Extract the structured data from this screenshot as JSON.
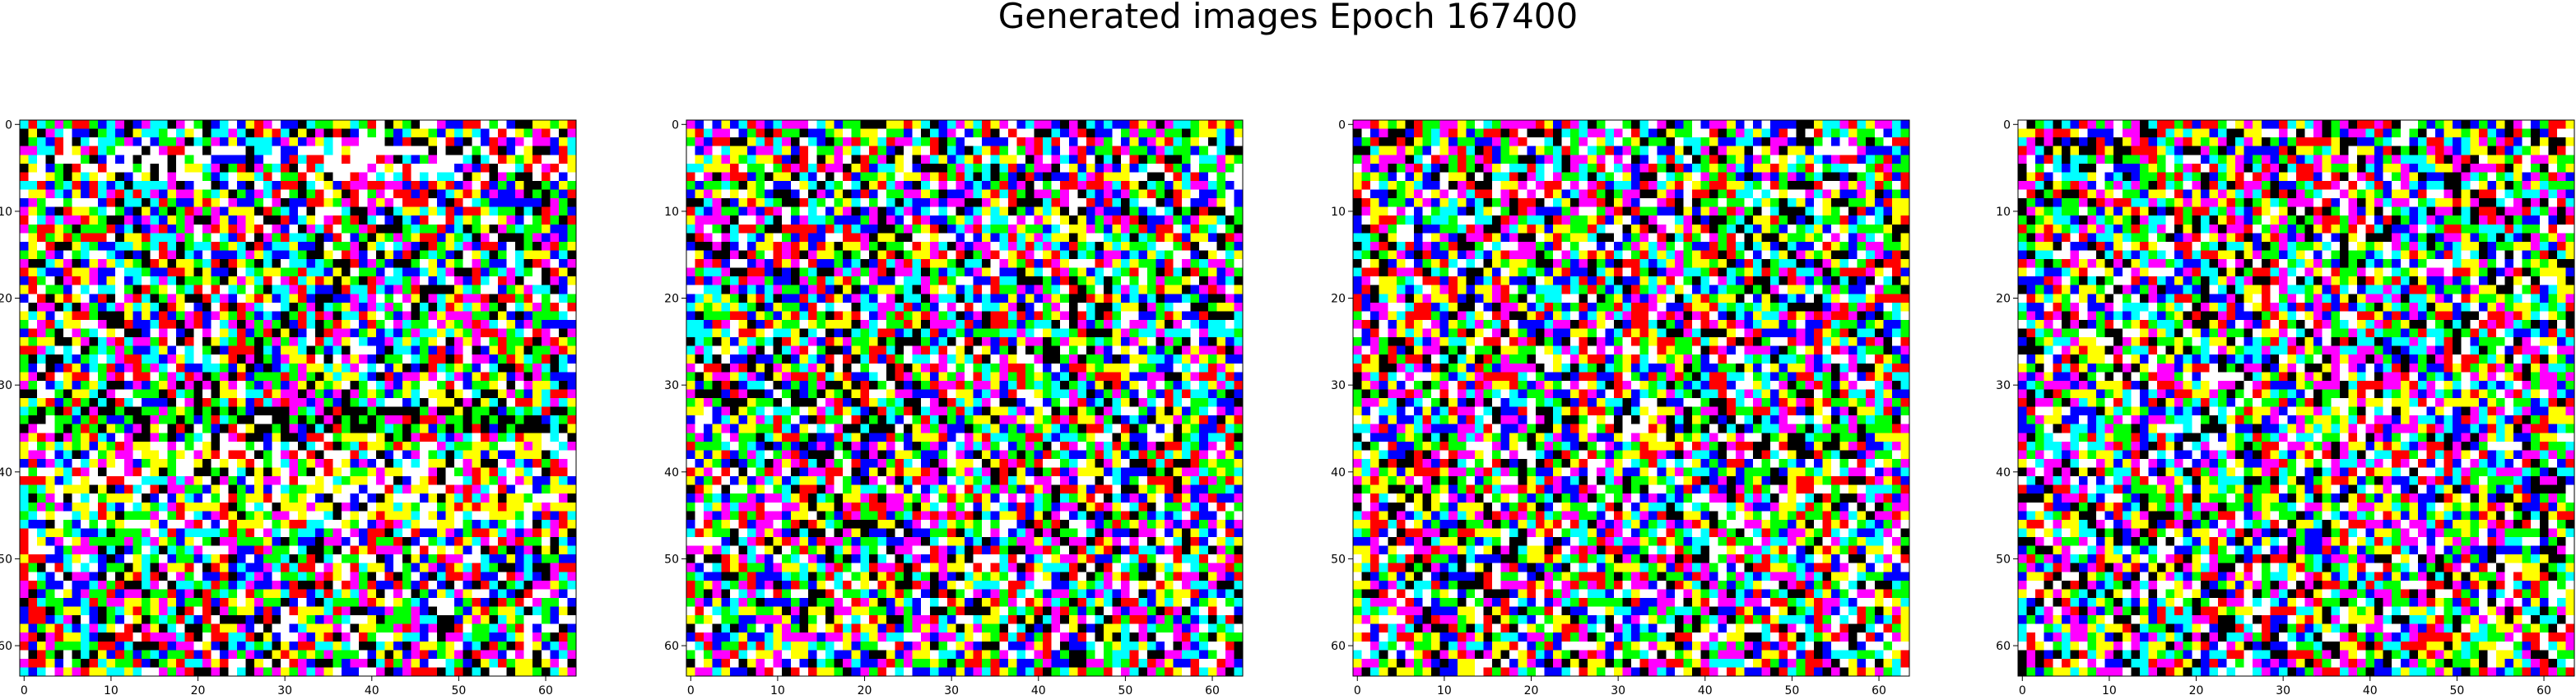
{
  "figure": {
    "title": "Generated images Epoch 167400"
  },
  "chart_data": [
    {
      "type": "heatmap",
      "title": "",
      "xlabel": "",
      "ylabel": "",
      "grid_size": [
        64,
        64
      ],
      "xlim": [
        -0.5,
        63.5
      ],
      "ylim": [
        63.5,
        -0.5
      ],
      "xticks": [
        0,
        10,
        20,
        30,
        40,
        50,
        60
      ],
      "yticks": [
        0,
        10,
        20,
        30,
        40,
        50,
        60
      ],
      "palette": [
        "#000000",
        "#ff0000",
        "#00ff00",
        "#0000ff",
        "#ffff00",
        "#00ffff",
        "#ff00ff",
        "#ffffff"
      ],
      "description_color_bias": "bright yellow/white band around rows 35-45, dark band around rows 33-36"
    },
    {
      "type": "heatmap",
      "grid_size": [
        64,
        64
      ],
      "xlim": [
        -0.5,
        63.5
      ],
      "ylim": [
        63.5,
        -0.5
      ],
      "xticks": [
        0,
        10,
        20,
        30,
        40,
        50,
        60
      ],
      "yticks": [
        0,
        10,
        20,
        30,
        40,
        50,
        60
      ],
      "palette": [
        "#000000",
        "#ff0000",
        "#00ff00",
        "#0000ff",
        "#ffff00",
        "#00ffff",
        "#ff00ff",
        "#ffffff"
      ]
    },
    {
      "type": "heatmap",
      "grid_size": [
        64,
        64
      ],
      "xlim": [
        -0.5,
        63.5
      ],
      "ylim": [
        63.5,
        -0.5
      ],
      "xticks": [
        0,
        10,
        20,
        30,
        40,
        50,
        60
      ],
      "yticks": [
        0,
        10,
        20,
        30,
        40,
        50,
        60
      ],
      "palette": [
        "#000000",
        "#ff0000",
        "#00ff00",
        "#0000ff",
        "#ffff00",
        "#00ffff",
        "#ff00ff",
        "#ffffff"
      ]
    },
    {
      "type": "heatmap",
      "grid_size": [
        64,
        64
      ],
      "xlim": [
        -0.5,
        63.5
      ],
      "ylim": [
        63.5,
        -0.5
      ],
      "xticks": [
        0,
        10,
        20,
        30,
        40,
        50,
        60
      ],
      "yticks": [
        0,
        10,
        20,
        30,
        40,
        50,
        60
      ],
      "palette": [
        "#000000",
        "#ff0000",
        "#00ff00",
        "#0000ff",
        "#ffff00",
        "#00ffff",
        "#ff00ff",
        "#ffffff"
      ]
    }
  ]
}
